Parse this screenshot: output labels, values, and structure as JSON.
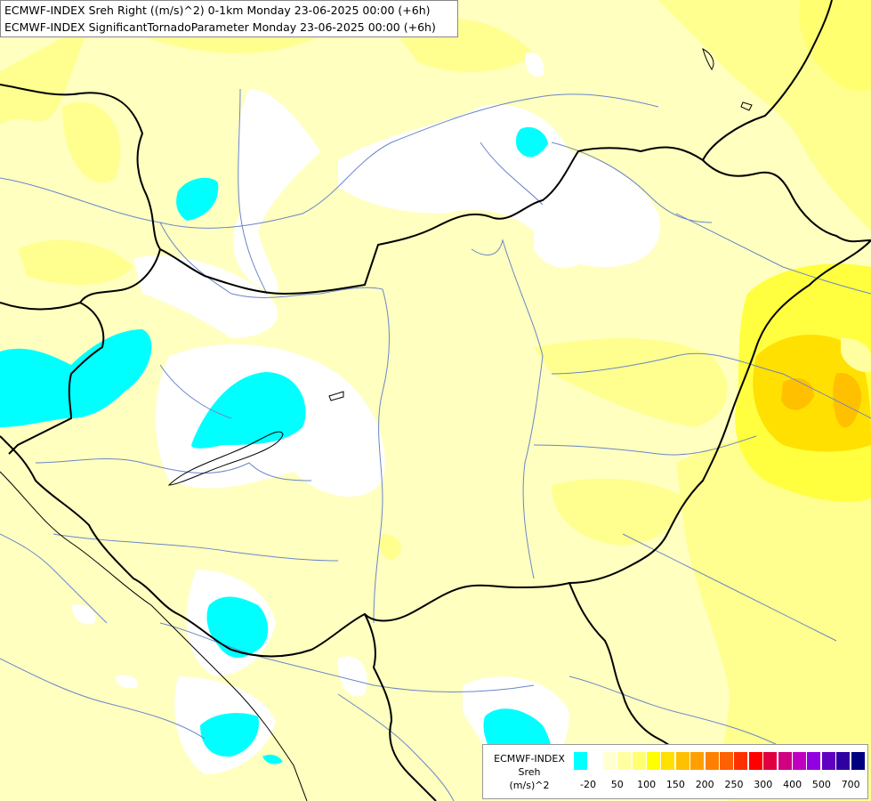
{
  "title": {
    "line1": "ECMWF-INDEX Sreh Right ((m/s)^2) 0-1km Monday 23-06-2025 00:00 (+6h)",
    "line2": "ECMWF-INDEX SignificantTornadoParameter Monday 23-06-2025 00:00 (+6h)"
  },
  "legend": {
    "title_lines": [
      "ECMWF-INDEX",
      "Sreh",
      "(m/s)^2"
    ],
    "colors": [
      "#00ffff",
      "#ffffff",
      "#ffffd0",
      "#ffffa0",
      "#ffff70",
      "#ffff00",
      "#ffe000",
      "#ffc000",
      "#ffa000",
      "#ff8000",
      "#ff6000",
      "#ff3000",
      "#ff0000",
      "#e00040",
      "#d00080",
      "#c000c0",
      "#9000e0",
      "#6000c0",
      "#3000a0",
      "#000080"
    ],
    "tick_labels": [
      "-20",
      "50",
      "100",
      "150",
      "200",
      "250",
      "300",
      "400",
      "500",
      "700"
    ]
  },
  "field_colors": {
    "background": "#ffffc0",
    "cyan": "#00ffff",
    "white": "#ffffff",
    "light_yellow": "#ffff90",
    "yellow": "#ffff40",
    "gold": "#ffe000",
    "orange": "#ffc000",
    "river": "#6a86c8",
    "border": "#000000"
  }
}
